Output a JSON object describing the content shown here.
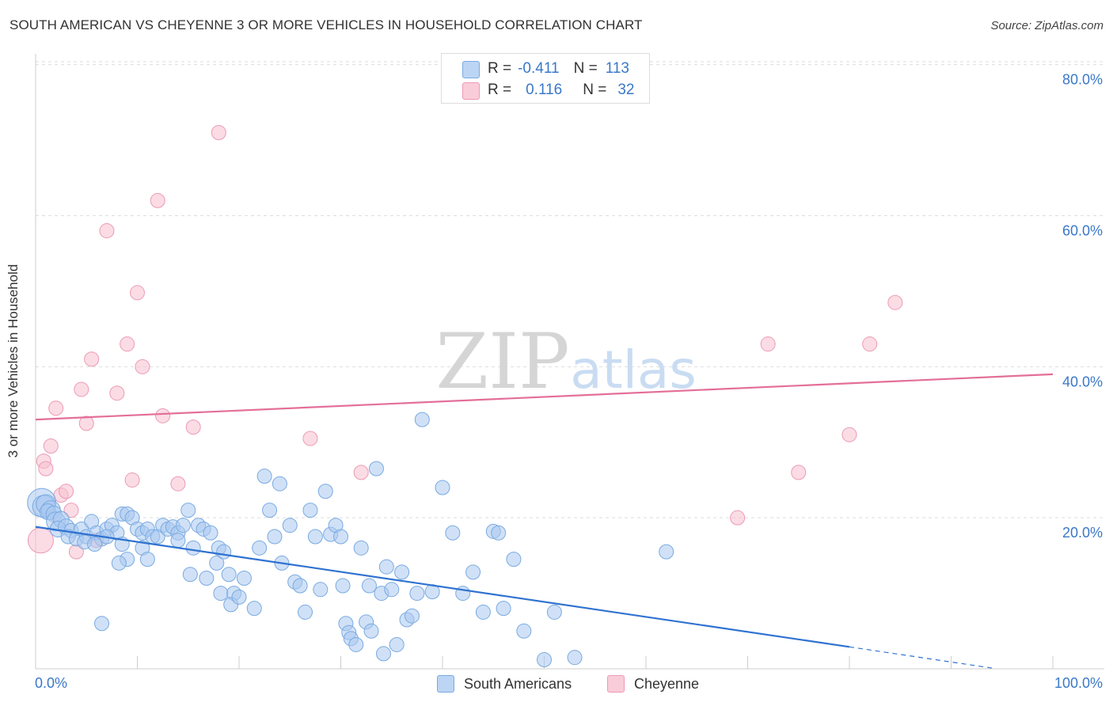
{
  "title": "SOUTH AMERICAN VS CHEYENNE 3 OR MORE VEHICLES IN HOUSEHOLD CORRELATION CHART",
  "source": "Source: ZipAtlas.com",
  "watermark": {
    "zip": "ZIP",
    "atlas": "atlas"
  },
  "colors": {
    "blue_fill": "#a9c8f0",
    "blue_stroke": "#7aaae0",
    "blue_line": "#2f72d0",
    "pink_fill": "#f7bfd0",
    "pink_stroke": "#ec9ab5",
    "pink_line": "#e36f99",
    "axis_label": "#3b78c8",
    "grid": "#dddddd"
  },
  "legend": {
    "rows": [
      {
        "r_label": "R =",
        "r_value": "-0.411",
        "n_label": "N =",
        "n_value": "113",
        "series": "South Americans"
      },
      {
        "r_label": "R =",
        "r_value": "0.116",
        "n_label": "N =",
        "n_value": "32",
        "series": "Cheyenne"
      }
    ]
  },
  "bottom_legend": {
    "items": [
      "South Americans",
      "Cheyenne"
    ]
  },
  "chart_data": {
    "type": "scatter",
    "title": "SOUTH AMERICAN VS CHEYENNE 3 OR MORE VEHICLES IN HOUSEHOLD CORRELATION CHART",
    "xlabel": "",
    "ylabel": "3 or more Vehicles in Household",
    "xlim": [
      0,
      100
    ],
    "ylim": [
      0,
      83
    ],
    "x_tick_labels": [
      "0.0%",
      "100.0%"
    ],
    "y_ticks": [
      20,
      40,
      60,
      80
    ],
    "y_tick_labels": [
      "20.0%",
      "40.0%",
      "60.0%",
      "80.0%"
    ],
    "grid": true,
    "series": [
      {
        "name": "South Americans",
        "color": "#a9c8f0",
        "r": -0.411,
        "n": 113,
        "trend": {
          "x0": 0,
          "y0": 18.8,
          "x1": 80,
          "y1": 2.9,
          "dash_to_x": 94,
          "dash_to_y": 0.1
        },
        "points": [
          [
            0.6,
            22.0,
            18
          ],
          [
            0.8,
            21.5,
            14
          ],
          [
            1.0,
            21.8,
            12
          ],
          [
            1.5,
            21.0,
            12
          ],
          [
            1.2,
            20.8,
            10
          ],
          [
            1.8,
            20.5,
            10
          ],
          [
            2.0,
            19.5,
            12
          ],
          [
            2.5,
            19.8,
            10
          ],
          [
            2.2,
            18.5,
            10
          ],
          [
            3.0,
            18.8,
            10
          ],
          [
            3.5,
            18.3,
            9
          ],
          [
            3.2,
            17.5,
            9
          ],
          [
            4.0,
            17.2,
            9
          ],
          [
            4.5,
            18.5,
            9
          ],
          [
            5.0,
            17.5,
            9
          ],
          [
            5.5,
            19.5,
            9
          ],
          [
            6.0,
            18.0,
            9
          ],
          [
            6.5,
            17.2,
            9
          ],
          [
            7.0,
            18.5,
            9
          ],
          [
            7.5,
            19.0,
            9
          ],
          [
            4.8,
            16.8,
            9
          ],
          [
            5.8,
            16.5,
            9
          ],
          [
            8.0,
            18.0,
            9
          ],
          [
            8.5,
            20.5,
            9
          ],
          [
            9.0,
            20.5,
            9
          ],
          [
            9.5,
            20.0,
            9
          ],
          [
            10.0,
            18.5,
            9
          ],
          [
            10.5,
            18.0,
            9
          ],
          [
            11.0,
            18.5,
            9
          ],
          [
            11.5,
            17.5,
            9
          ],
          [
            8.5,
            16.5,
            9
          ],
          [
            9.0,
            14.5,
            9
          ],
          [
            8.2,
            14.0,
            9
          ],
          [
            10.5,
            16.0,
            9
          ],
          [
            11.0,
            14.5,
            9
          ],
          [
            12.0,
            17.5,
            9
          ],
          [
            12.5,
            19.0,
            9
          ],
          [
            13.0,
            18.5,
            9
          ],
          [
            13.5,
            18.8,
            9
          ],
          [
            14.0,
            18.0,
            9
          ],
          [
            14.5,
            19.0,
            9
          ],
          [
            14.0,
            17.0,
            9
          ],
          [
            15.0,
            21.0,
            9
          ],
          [
            16.0,
            19.0,
            9
          ],
          [
            16.5,
            18.5,
            9
          ],
          [
            15.5,
            16.0,
            9
          ],
          [
            15.2,
            12.5,
            9
          ],
          [
            16.8,
            12.0,
            9
          ],
          [
            17.2,
            18.0,
            9
          ],
          [
            18.0,
            16.0,
            9
          ],
          [
            17.8,
            14.0,
            9
          ],
          [
            18.5,
            15.5,
            9
          ],
          [
            19.0,
            12.5,
            9
          ],
          [
            18.2,
            10.0,
            9
          ],
          [
            19.5,
            10.0,
            9
          ],
          [
            19.2,
            8.5,
            9
          ],
          [
            20.5,
            12.0,
            9
          ],
          [
            20.0,
            9.5,
            9
          ],
          [
            21.5,
            8.0,
            9
          ],
          [
            22.0,
            16.0,
            9
          ],
          [
            22.5,
            25.5,
            9
          ],
          [
            23.0,
            21.0,
            9
          ],
          [
            23.5,
            17.5,
            9
          ],
          [
            24.0,
            24.5,
            9
          ],
          [
            24.2,
            14.0,
            9
          ],
          [
            25.0,
            19.0,
            9
          ],
          [
            25.5,
            11.5,
            9
          ],
          [
            26.0,
            11.0,
            9
          ],
          [
            26.5,
            7.5,
            9
          ],
          [
            27.0,
            21.0,
            9
          ],
          [
            27.5,
            17.5,
            9
          ],
          [
            28.0,
            10.5,
            9
          ],
          [
            28.5,
            23.5,
            9
          ],
          [
            29.0,
            17.8,
            9
          ],
          [
            29.5,
            19.0,
            9
          ],
          [
            30.0,
            17.5,
            9
          ],
          [
            30.2,
            11.0,
            9
          ],
          [
            30.5,
            6.0,
            9
          ],
          [
            30.8,
            4.8,
            9
          ],
          [
            31.0,
            4.0,
            9
          ],
          [
            31.5,
            3.2,
            9
          ],
          [
            32.0,
            16.0,
            9
          ],
          [
            32.5,
            6.2,
            9
          ],
          [
            32.8,
            11.0,
            9
          ],
          [
            33.0,
            5.0,
            9
          ],
          [
            33.5,
            26.5,
            9
          ],
          [
            34.0,
            10.0,
            9
          ],
          [
            34.2,
            2.0,
            9
          ],
          [
            34.5,
            13.5,
            9
          ],
          [
            35.0,
            10.5,
            9
          ],
          [
            35.5,
            3.2,
            9
          ],
          [
            36.0,
            12.8,
            9
          ],
          [
            36.5,
            6.5,
            9
          ],
          [
            37.0,
            7.0,
            9
          ],
          [
            37.5,
            10.0,
            9
          ],
          [
            38.0,
            33.0,
            9
          ],
          [
            39.0,
            10.2,
            9
          ],
          [
            40.0,
            24.0,
            9
          ],
          [
            41.0,
            18.0,
            9
          ],
          [
            42.0,
            10.0,
            9
          ],
          [
            43.0,
            12.8,
            9
          ],
          [
            44.0,
            7.5,
            9
          ],
          [
            45.0,
            18.2,
            9
          ],
          [
            45.5,
            18.0,
            9
          ],
          [
            46.0,
            8.0,
            9
          ],
          [
            47.0,
            14.5,
            9
          ],
          [
            48.0,
            5.0,
            9
          ],
          [
            50.0,
            1.2,
            9
          ],
          [
            51.0,
            7.5,
            9
          ],
          [
            53.0,
            1.5,
            9
          ],
          [
            62.0,
            15.5,
            9
          ],
          [
            6.5,
            6.0,
            9
          ],
          [
            7.0,
            17.5,
            9
          ]
        ]
      },
      {
        "name": "Cheyenne",
        "color": "#f7bfd0",
        "r": 0.116,
        "n": 32,
        "trend": {
          "x0": 0,
          "y0": 33.0,
          "x1": 100,
          "y1": 39.0
        },
        "points": [
          [
            0.5,
            17.0,
            16
          ],
          [
            0.8,
            27.5,
            9
          ],
          [
            1.0,
            26.5,
            9
          ],
          [
            1.5,
            29.5,
            9
          ],
          [
            2.0,
            34.5,
            9
          ],
          [
            2.5,
            23.0,
            9
          ],
          [
            3.0,
            23.5,
            9
          ],
          [
            3.5,
            21.0,
            9
          ],
          [
            4.0,
            15.5,
            9
          ],
          [
            4.5,
            37.0,
            9
          ],
          [
            5.0,
            32.5,
            9
          ],
          [
            5.5,
            41.0,
            9
          ],
          [
            6.0,
            17.0,
            9
          ],
          [
            7.0,
            58.0,
            9
          ],
          [
            8.0,
            36.5,
            9
          ],
          [
            9.0,
            43.0,
            9
          ],
          [
            9.5,
            25.0,
            9
          ],
          [
            10.0,
            49.8,
            9
          ],
          [
            10.5,
            40.0,
            9
          ],
          [
            12.0,
            62.0,
            9
          ],
          [
            12.5,
            33.5,
            9
          ],
          [
            14.0,
            24.5,
            9
          ],
          [
            15.5,
            32.0,
            9
          ],
          [
            18.0,
            71.0,
            9
          ],
          [
            27.0,
            30.5,
            9
          ],
          [
            32.0,
            26.0,
            9
          ],
          [
            69.0,
            20.0,
            9
          ],
          [
            72.0,
            43.0,
            9
          ],
          [
            75.0,
            26.0,
            9
          ],
          [
            80.0,
            31.0,
            9
          ],
          [
            82.0,
            43.0,
            9
          ],
          [
            84.5,
            48.5,
            9
          ]
        ]
      }
    ]
  }
}
